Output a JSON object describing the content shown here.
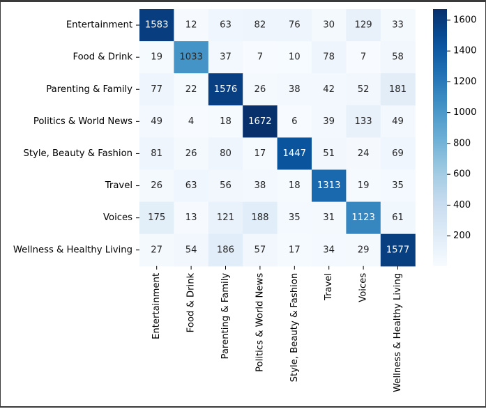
{
  "chart_data": {
    "type": "heatmap",
    "title": "",
    "xlabel": "",
    "ylabel": "",
    "rows": [
      "Entertainment",
      "Food & Drink",
      "Parenting & Family",
      "Politics & World News",
      "Style, Beauty & Fashion",
      "Travel",
      "Voices",
      "Wellness & Healthy Living"
    ],
    "columns": [
      "Entertainment",
      "Food & Drink",
      "Parenting & Family",
      "Politics & World News",
      "Style, Beauty & Fashion",
      "Travel",
      "Voices",
      "Wellness & Healthy Living"
    ],
    "values": [
      [
        1583,
        12,
        63,
        82,
        76,
        30,
        129,
        33
      ],
      [
        19,
        1033,
        37,
        7,
        10,
        78,
        7,
        58
      ],
      [
        77,
        22,
        1576,
        26,
        38,
        42,
        52,
        181
      ],
      [
        49,
        4,
        18,
        1672,
        6,
        39,
        133,
        49
      ],
      [
        81,
        26,
        80,
        17,
        1447,
        51,
        24,
        69
      ],
      [
        26,
        63,
        56,
        38,
        18,
        1313,
        19,
        35
      ],
      [
        175,
        13,
        121,
        188,
        35,
        31,
        1123,
        61
      ],
      [
        27,
        54,
        186,
        57,
        17,
        34,
        29,
        1577
      ]
    ],
    "colormap": "Blues",
    "colors": {
      "low": "#f7fbff",
      "high": "#08306b"
    },
    "vmin": 4,
    "vmax": 1672,
    "colorbar_ticks": [
      200,
      400,
      600,
      800,
      1000,
      1200,
      1400,
      1600
    ],
    "annotations": true
  }
}
